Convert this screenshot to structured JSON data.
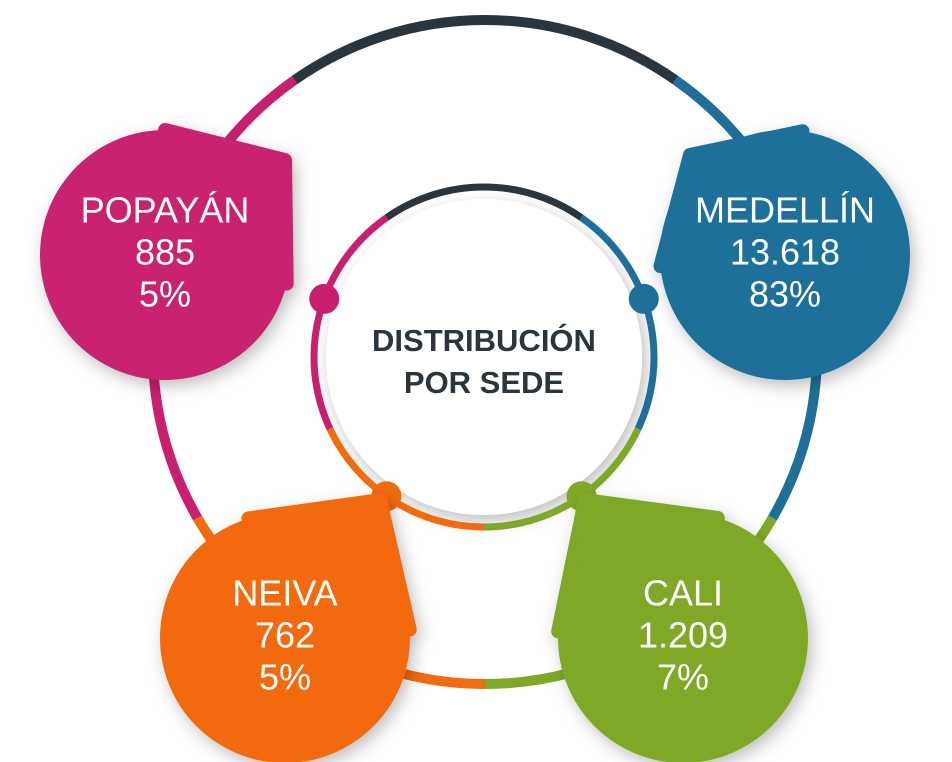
{
  "title": {
    "lines": [
      "DISTRIBUCIÓN",
      "POR SEDE"
    ]
  },
  "nodes": [
    {
      "name": "POPAYÁN",
      "value": "885",
      "percent": "5%"
    },
    {
      "name": "MEDELLÍN",
      "value": "13.618",
      "percent": "83%"
    },
    {
      "name": "NEIVA",
      "value": "762",
      "percent": "5%"
    },
    {
      "name": "CALI",
      "value": "1.209",
      "percent": "7%"
    }
  ]
}
